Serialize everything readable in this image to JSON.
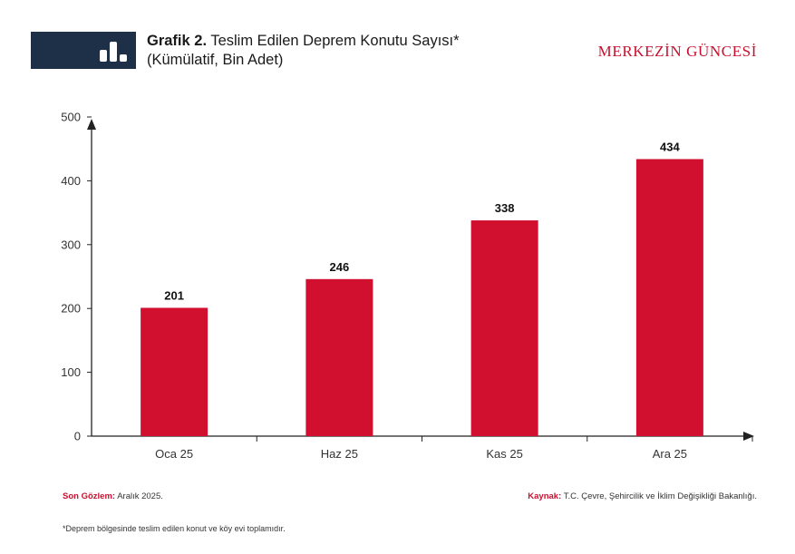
{
  "header": {
    "title_prefix": "Grafik 2.",
    "title_main": "Teslim Edilen Deprem Konutu Sayısı*",
    "subtitle": "(Kümülatif, Bin Adet)",
    "brand": "MERKEZİN GÜNCESİ",
    "icon": "bar-chart-icon",
    "box_color": "#1e3048",
    "accent": "#c8102e"
  },
  "chart_data": {
    "type": "bar",
    "categories": [
      "Oca 25",
      "Haz 25",
      "Kas 25",
      "Ara 25"
    ],
    "values": [
      201,
      246,
      338,
      434
    ],
    "value_labels": [
      "201",
      "246",
      "338",
      "434"
    ],
    "yticks": [
      "0",
      "100",
      "200",
      "300",
      "400",
      "500"
    ],
    "ylim": [
      0,
      500
    ],
    "title": "Teslim Edilen Deprem Konutu Sayısı*",
    "xlabel": "",
    "ylabel": "",
    "bar_color": "#d0102e",
    "grid": false,
    "legend": "none"
  },
  "footer": {
    "last_obs_label": "Son Gözlem:",
    "last_obs_value": "Aralık 2025.",
    "source_label": "Kaynak:",
    "source_value": "T.C. Çevre, Şehircilik ve İklim Değişikliği Bakanlığı.",
    "note": "*Deprem bölgesinde teslim edilen konut ve köy evi toplamıdır."
  }
}
